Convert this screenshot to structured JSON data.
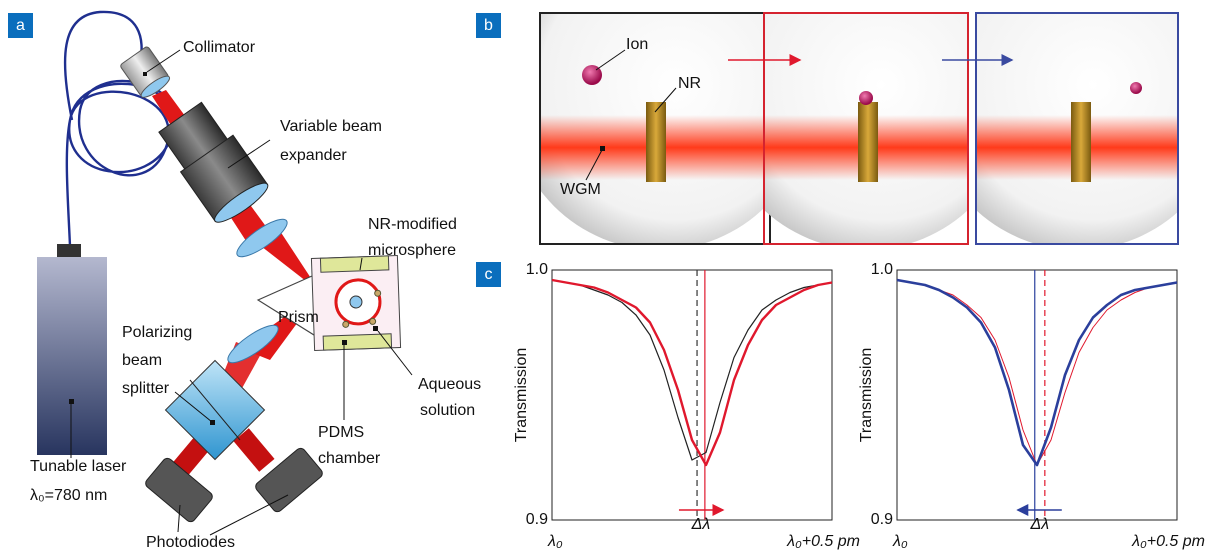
{
  "panels": [
    "a",
    "b",
    "c"
  ],
  "diagram_a": {
    "collimator": "Collimator",
    "expander": [
      "Variable beam",
      "expander"
    ],
    "microsphere": [
      "NR-modified",
      "microsphere"
    ],
    "prism": "Prism",
    "splitter": [
      "Polarizing",
      "beam",
      "splitter"
    ],
    "chamber": [
      "PDMS",
      "chamber"
    ],
    "solution": [
      "Aqueous",
      "solution"
    ],
    "laser": [
      "Tunable laser",
      "λ₀=780 nm"
    ],
    "photodiodes": "Photodiodes"
  },
  "panel_b": {
    "ion": "Ion",
    "nr": "NR",
    "wgm": "WGM"
  },
  "chart_data": [
    {
      "type": "line",
      "ylabel": "Transmission",
      "x": [
        0,
        0.025,
        0.05,
        0.075,
        0.1,
        0.125,
        0.15,
        0.175,
        0.2,
        0.225,
        0.25,
        0.275,
        0.3,
        0.325,
        0.35,
        0.375,
        0.4,
        0.425,
        0.45,
        0.475,
        0.5
      ],
      "series": [
        {
          "color": "#222222",
          "line_width": 1.2,
          "values": [
            0.996,
            0.995,
            0.994,
            0.992,
            0.99,
            0.987,
            0.982,
            0.974,
            0.96,
            0.941,
            0.924,
            0.927,
            0.947,
            0.965,
            0.976,
            0.984,
            0.988,
            0.991,
            0.993,
            0.994,
            0.995
          ]
        },
        {
          "color": "#e0182d",
          "line_width": 2.4,
          "values": [
            0.996,
            0.995,
            0.994,
            0.993,
            0.991,
            0.988,
            0.985,
            0.979,
            0.968,
            0.952,
            0.932,
            0.922,
            0.935,
            0.956,
            0.97,
            0.98,
            0.986,
            0.989,
            0.992,
            0.994,
            0.995
          ]
        }
      ],
      "resonances": [
        {
          "x": 0.259,
          "color": "#333333",
          "dashed": true
        },
        {
          "x": 0.273,
          "color": "#e0182d",
          "dashed": false
        }
      ],
      "annotation": {
        "text": "Δλ",
        "color": "#e0182d",
        "direction": "right"
      },
      "xlim": [
        0,
        0.5
      ],
      "ylim": [
        0.9,
        1.0
      ],
      "xticks": [
        {
          "value": 0,
          "label": "λ₀"
        },
        {
          "value": 0.5,
          "label": "λ₀+0.5 pm"
        }
      ],
      "yticks": [
        {
          "value": 0.9,
          "label": "0.9"
        },
        {
          "value": 1.0,
          "label": "1.0"
        }
      ]
    },
    {
      "type": "line",
      "ylabel": "Transmission",
      "x": [
        0,
        0.025,
        0.05,
        0.075,
        0.1,
        0.125,
        0.15,
        0.175,
        0.2,
        0.225,
        0.25,
        0.275,
        0.3,
        0.325,
        0.35,
        0.375,
        0.4,
        0.425,
        0.45,
        0.475,
        0.5
      ],
      "series": [
        {
          "color": "#e0182d",
          "line_width": 1.0,
          "values": [
            0.996,
            0.995,
            0.994,
            0.992,
            0.99,
            0.986,
            0.981,
            0.972,
            0.957,
            0.936,
            0.922,
            0.932,
            0.951,
            0.967,
            0.977,
            0.984,
            0.988,
            0.991,
            0.993,
            0.994,
            0.995
          ]
        },
        {
          "color": "#2b3f9c",
          "line_width": 2.6,
          "values": [
            0.996,
            0.995,
            0.994,
            0.992,
            0.989,
            0.985,
            0.979,
            0.969,
            0.952,
            0.93,
            0.922,
            0.937,
            0.958,
            0.972,
            0.981,
            0.986,
            0.99,
            0.992,
            0.993,
            0.994,
            0.995
          ]
        }
      ],
      "resonances": [
        {
          "x": 0.246,
          "color": "#2b3f9c",
          "dashed": false
        },
        {
          "x": 0.264,
          "color": "#e0182d",
          "dashed": true
        }
      ],
      "annotation": {
        "text": "Δλ",
        "color": "#2b3f9c",
        "direction": "left"
      },
      "xlim": [
        0,
        0.5
      ],
      "ylim": [
        0.9,
        1.0
      ],
      "xticks": [
        {
          "value": 0,
          "label": "λ₀"
        },
        {
          "value": 0.5,
          "label": "λ₀+0.5 pm"
        }
      ],
      "yticks": [
        {
          "value": 0.9,
          "label": "0.9"
        },
        {
          "value": 1.0,
          "label": "1.0"
        }
      ]
    }
  ]
}
